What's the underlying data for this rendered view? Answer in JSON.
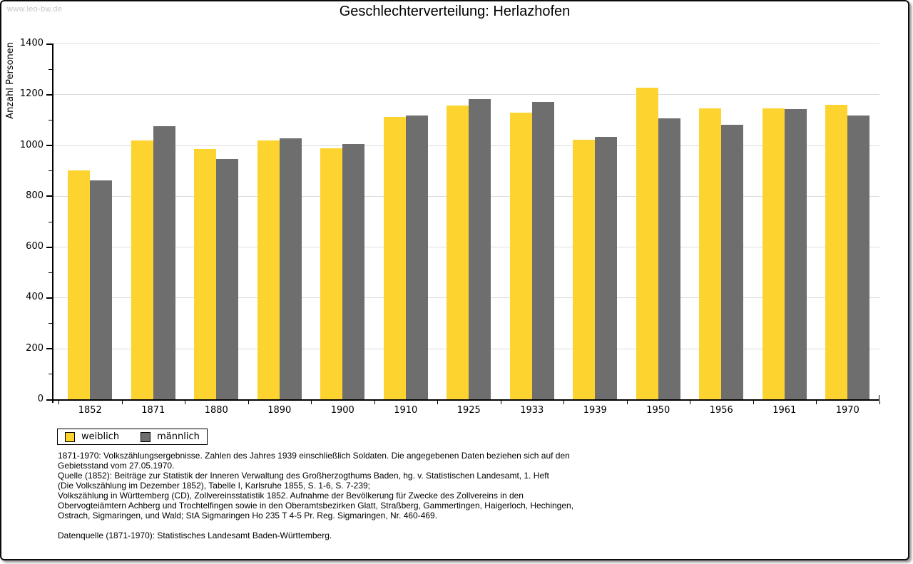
{
  "watermark": "www.leo-bw.de",
  "chart_data": {
    "type": "bar",
    "title": "Geschlechterverteilung: Herlazhofen",
    "xlabel": "",
    "ylabel": "Anzahl Personen",
    "categories": [
      "1852",
      "1871",
      "1880",
      "1890",
      "1900",
      "1910",
      "1925",
      "1933",
      "1939",
      "1950",
      "1956",
      "1961",
      "1970"
    ],
    "series": [
      {
        "name": "weiblich",
        "color": "#FCD32F",
        "values": [
          900,
          1018,
          985,
          1018,
          988,
          1112,
          1155,
          1128,
          1021,
          1226,
          1145,
          1144,
          1158
        ]
      },
      {
        "name": "männlich",
        "color": "#6E6E6E",
        "values": [
          862,
          1074,
          946,
          1027,
          1004,
          1116,
          1182,
          1170,
          1032,
          1105,
          1080,
          1141,
          1117
        ]
      }
    ],
    "ylim": [
      0,
      1400
    ],
    "ytick_step": 200,
    "yminor_step": 100,
    "grid": true,
    "legend_position": "below-left",
    "colors": {
      "gridline": "#DCDCDC",
      "axis": "#000000",
      "background": "#FFFFFF"
    }
  },
  "footer": {
    "lines": [
      "1871-1970: Volkszählungsergebnisse. Zahlen des Jahres 1939 einschließlich Soldaten. Die angegebenen Daten beziehen sich auf den",
      "Gebietsstand vom 27.05.1970.",
      "Quelle (1852): Beiträge zur Statistik der Inneren Verwaltung des Großherzogthums Baden, hg. v. Statistischen Landesamt, 1. Heft",
      "(Die Volkszählung im Dezember 1852), Tabelle I, Karlsruhe 1855, S. 1-6, S. 7-239;",
      "Volkszählung in Württemberg (CD), Zollvereinsstatistik 1852. Aufnahme der Bevölkerung für Zwecke des Zollvereins in den",
      "Obervogteiämtern Achberg und Trochtelfingen sowie in den Oberamtsbezirken Glatt, Straßberg, Gammertingen, Haigerloch, Hechingen,",
      "Ostrach, Sigmaringen, und Wald; StA Sigmaringen Ho 235 T 4-5 Pr. Reg. Sigmaringen, Nr. 460-469.",
      "",
      "Datenquelle (1871-1970): Statistisches Landesamt Baden-Württemberg."
    ]
  }
}
